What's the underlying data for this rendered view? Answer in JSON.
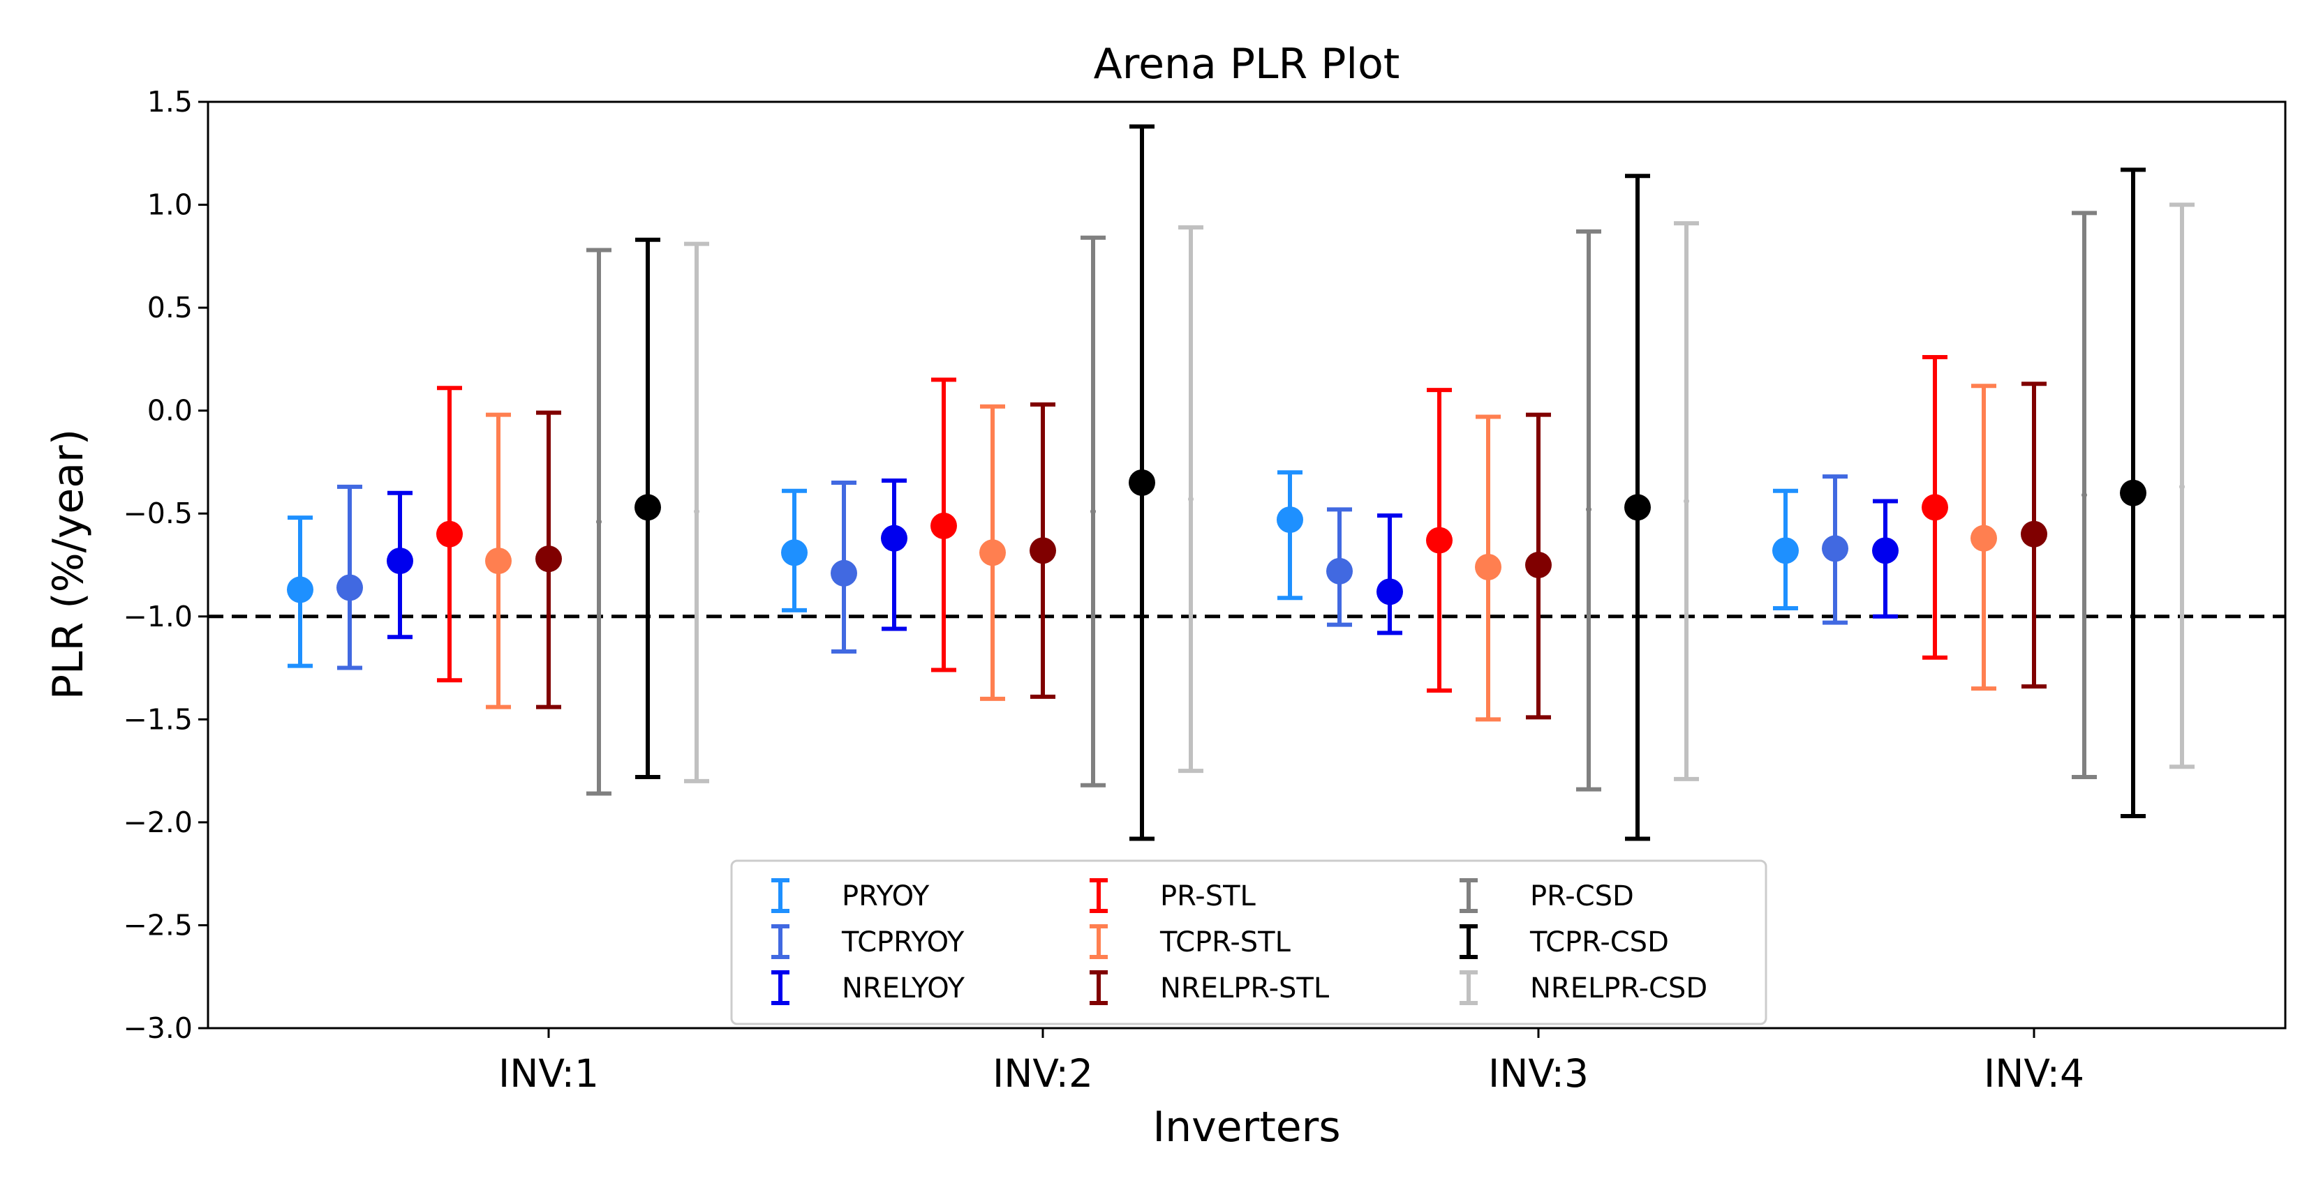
{
  "chart_data": {
    "type": "errorbar",
    "title": "Arena PLR Plot",
    "xlabel": "Inverters",
    "ylabel": "PLR (%/year)",
    "ylim": [
      -3.0,
      1.5
    ],
    "yticks": [
      1.5,
      1.0,
      0.5,
      0.0,
      -0.5,
      -1.0,
      -1.5,
      -2.0,
      -2.5,
      -3.0
    ],
    "ytick_labels": [
      "1.5",
      "1.0",
      "0.5",
      "0.0",
      "−0.5",
      "−1.0",
      "−1.5",
      "−2.0",
      "−2.5",
      "−3.0"
    ],
    "categories": [
      "INV:1",
      "INV:2",
      "INV:3",
      "INV:4"
    ],
    "reference_line": {
      "y": -1.0,
      "style": "dashed",
      "color": "#000000"
    },
    "legend_position": "lower-center",
    "series": [
      {
        "name": "PRYOY",
        "color": "#1e90ff",
        "marker": "large-dot",
        "values": [
          -0.87,
          -0.69,
          -0.53,
          -0.68
        ],
        "lower": [
          -1.24,
          -0.97,
          -0.91,
          -0.96
        ],
        "upper": [
          -0.52,
          -0.39,
          -0.3,
          -0.39
        ]
      },
      {
        "name": "TCPRYOY",
        "color": "#4169e1",
        "marker": "large-dot",
        "values": [
          -0.86,
          -0.79,
          -0.78,
          -0.67
        ],
        "lower": [
          -1.25,
          -1.17,
          -1.04,
          -1.03
        ],
        "upper": [
          -0.37,
          -0.35,
          -0.48,
          -0.32
        ]
      },
      {
        "name": "NRELYOY",
        "color": "#0000ee",
        "marker": "large-dot",
        "values": [
          -0.73,
          -0.62,
          -0.88,
          -0.68
        ],
        "lower": [
          -1.1,
          -1.06,
          -1.08,
          -1.0
        ],
        "upper": [
          -0.4,
          -0.34,
          -0.51,
          -0.44
        ]
      },
      {
        "name": "PR-STL",
        "color": "#ff0000",
        "marker": "large-dot",
        "values": [
          -0.6,
          -0.56,
          -0.63,
          -0.47
        ],
        "lower": [
          -1.31,
          -1.26,
          -1.36,
          -1.2
        ],
        "upper": [
          0.11,
          0.15,
          0.1,
          0.26
        ]
      },
      {
        "name": "TCPR-STL",
        "color": "#ff7f50",
        "marker": "large-dot",
        "values": [
          -0.73,
          -0.69,
          -0.76,
          -0.62
        ],
        "lower": [
          -1.44,
          -1.4,
          -1.5,
          -1.35
        ],
        "upper": [
          -0.02,
          0.02,
          -0.03,
          0.12
        ]
      },
      {
        "name": "NRELPR-STL",
        "color": "#800000",
        "marker": "large-dot",
        "values": [
          -0.72,
          -0.68,
          -0.75,
          -0.6
        ],
        "lower": [
          -1.44,
          -1.39,
          -1.49,
          -1.34
        ],
        "upper": [
          -0.01,
          0.03,
          -0.02,
          0.13
        ]
      },
      {
        "name": "PR-CSD",
        "color": "#808080",
        "marker": "tiny-dot",
        "values": [
          -0.54,
          -0.49,
          -0.48,
          -0.41
        ],
        "lower": [
          -1.86,
          -1.82,
          -1.84,
          -1.78
        ],
        "upper": [
          0.78,
          0.84,
          0.87,
          0.96
        ]
      },
      {
        "name": "TCPR-CSD",
        "color": "#000000",
        "marker": "large-dot",
        "values": [
          -0.47,
          -0.35,
          -0.47,
          -0.4
        ],
        "lower": [
          -1.78,
          -2.08,
          -2.08,
          -1.97
        ],
        "upper": [
          0.83,
          1.38,
          1.14,
          1.17
        ]
      },
      {
        "name": "NRELPR-CSD",
        "color": "#c0c0c0",
        "marker": "tiny-dot",
        "values": [
          -0.49,
          -0.43,
          -0.44,
          -0.37
        ],
        "lower": [
          -1.8,
          -1.75,
          -1.79,
          -1.73
        ],
        "upper": [
          0.81,
          0.89,
          0.91,
          1.0
        ]
      }
    ]
  }
}
